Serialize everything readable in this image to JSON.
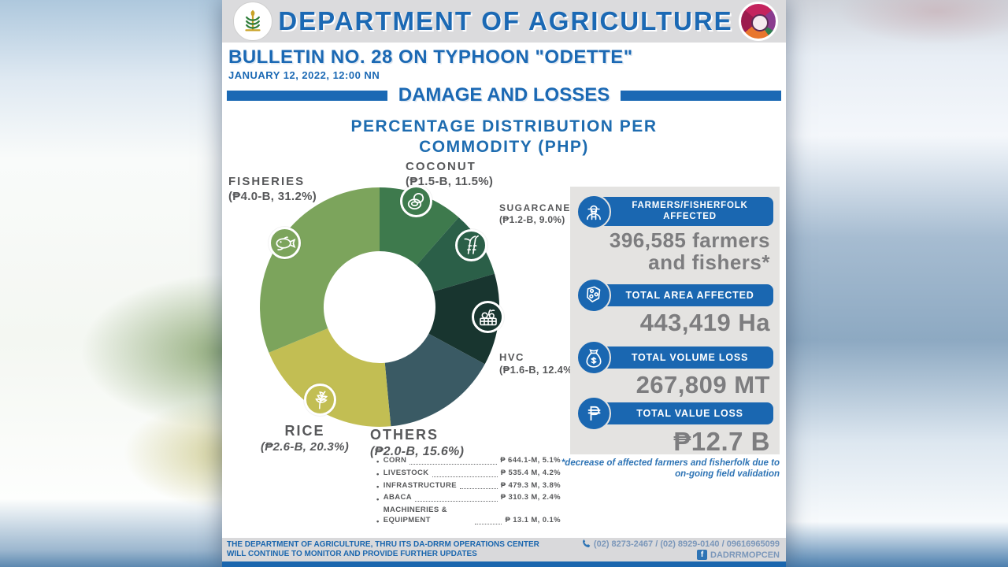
{
  "header": {
    "title": "DEPARTMENT OF AGRICULTURE",
    "left_logo": "department-of-agriculture-seal",
    "right_logo": "da-drrm-opcen-logo"
  },
  "bulletin": {
    "title": "BULLETIN NO. 28 ON TYPHOON \"ODETTE\"",
    "date": "JANUARY 12, 2022, 12:00 NN",
    "section": "DAMAGE AND LOSSES"
  },
  "chart_data": {
    "type": "pie",
    "subtype": "donut",
    "title": "PERCENTAGE DISTRIBUTION PER COMMODITY (PHP)",
    "start_angle_deg": 0,
    "direction": "clockwise",
    "segments": [
      {
        "name": "COCONUT",
        "value_label": "(₱1.5-B, 11.5%)",
        "php_billions": 1.5,
        "percent": 11.5,
        "color": "#3e7a4d",
        "icon": "coconut-icon"
      },
      {
        "name": "SUGARCANE",
        "value_label": "(₱1.2-B, 9.0%)",
        "php_billions": 1.2,
        "percent": 9.0,
        "color": "#2b5f48",
        "icon": "sugarcane-icon"
      },
      {
        "name": "HVC",
        "value_label": "(₱1.6-B, 12.4%)",
        "php_billions": 1.6,
        "percent": 12.4,
        "color": "#18352f",
        "icon": "hvc-icon"
      },
      {
        "name": "OTHERS",
        "value_label": "(₱2.0-B, 15.6%)",
        "php_billions": 2.0,
        "percent": 15.6,
        "color": "#3a5a64",
        "icon": null
      },
      {
        "name": "RICE",
        "value_label": "(₱2.6-B, 20.3%)",
        "php_billions": 2.6,
        "percent": 20.3,
        "color": "#c2be53",
        "icon": "rice-icon"
      },
      {
        "name": "FISHERIES",
        "value_label": "(₱4.0-B, 31.2%)",
        "php_billions": 4.0,
        "percent": 31.2,
        "color": "#7ca45c",
        "icon": "fish-icon"
      }
    ],
    "others_breakdown": [
      {
        "name": "CORN",
        "value": "₱ 644.1-M, 5.1%"
      },
      {
        "name": "LIVESTOCK",
        "value": "₱ 535.4 M, 4.2%"
      },
      {
        "name": "INFRASTRUCTURE",
        "value": "₱ 479.3 M, 3.8%"
      },
      {
        "name": "ABACA",
        "value": "₱ 310.3 M, 2.4%"
      },
      {
        "name": "MACHINERIES & EQUIPMENT",
        "value": "₱  13.1 M, 0.1%"
      }
    ]
  },
  "sidebar": {
    "stats": [
      {
        "icon": "farmer-icon",
        "label": "FARMERS/FISHERFOLK AFFECTED",
        "value": "396,585 farmers and fishers*"
      },
      {
        "icon": "map-area-icon",
        "label": "TOTAL AREA AFFECTED",
        "value": "443,419 Ha"
      },
      {
        "icon": "sack-icon",
        "label": "TOTAL VOLUME LOSS",
        "value": "267,809 MT"
      },
      {
        "icon": "peso-icon",
        "label": "TOTAL VALUE LOSS",
        "value": "₱12.7 B"
      }
    ],
    "footnote": "*decrease of affected farmers and fisherfolk due to on-going field validation"
  },
  "footer": {
    "message_lines": [
      "THE DEPARTMENT OF AGRICULTURE, THRU ITS DA-DRRM OPERATIONS CENTER",
      "WILL CONTINUE TO MONITOR AND PROVIDE FURTHER UPDATES"
    ],
    "phones": "(02) 8273-2467 / (02) 8929-0140 / 09616965099",
    "facebook": "DADRRMOPCEN"
  },
  "colors": {
    "brand_blue": "#1a67b1",
    "header_gray": "#dbdbdd",
    "panel_gray": "#e4e3e1",
    "stat_value_gray": "#7d7d7f",
    "chart_label_gray": "#57585a",
    "footnote_blue": "#2e74b5"
  }
}
